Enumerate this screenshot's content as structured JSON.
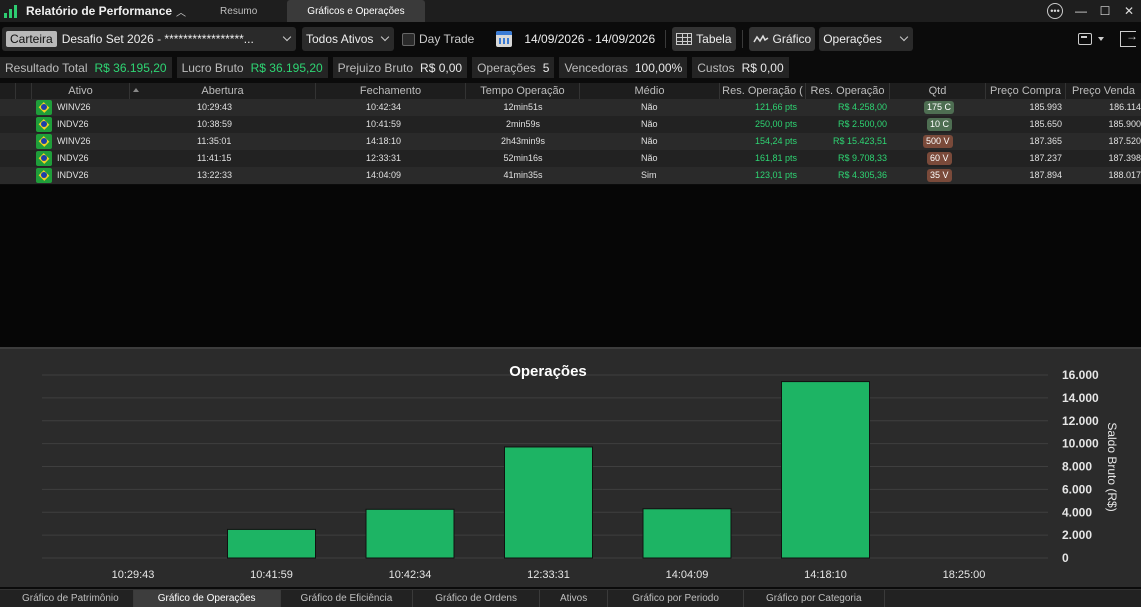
{
  "app": {
    "title": "Relatório de Performance"
  },
  "top_tabs": [
    {
      "label": "Resumo",
      "active": false
    },
    {
      "label": "Gráficos e Operações",
      "active": true
    }
  ],
  "toolbar": {
    "portfolio_badge": "Carteira",
    "portfolio_name": "Desafio Set 2026 - *****************...",
    "assets_filter": "Todos Ativos",
    "daytrade_label": "Day Trade",
    "daytrade_checked": false,
    "date_range": "14/09/2026 - 14/09/2026",
    "table_button": "Tabela",
    "chart_button": "Gráfico",
    "view_select": "Operações"
  },
  "summary": [
    {
      "label": "Resultado Total",
      "value": "R$ 36.195,20",
      "green": true
    },
    {
      "label": "Lucro Bruto",
      "value": "R$ 36.195,20",
      "green": true
    },
    {
      "label": "Prejuizo Bruto",
      "value": "R$ 0,00",
      "green": false
    },
    {
      "label": "Operações",
      "value": "5",
      "green": false
    },
    {
      "label": "Vencedoras",
      "value": "100,00%",
      "green": false
    },
    {
      "label": "Custos",
      "value": "R$ 0,00",
      "green": false
    }
  ],
  "table": {
    "columns": [
      "Ativo",
      "Abertura",
      "Fechamento",
      "Tempo Operação",
      "Médio",
      "Res. Operação (",
      "Res. Operação",
      "Qtd",
      "Preço Compra",
      "Preço Venda"
    ],
    "rows": [
      {
        "ativo": "WINV26",
        "abertura": "10:29:43",
        "fechamento": "10:42:34",
        "tempo": "12min51s",
        "medio": "Não",
        "res_pts": "121,66 pts",
        "res_rs": "R$ 4.258,00",
        "qtd": "175 C",
        "qtd_side": "c",
        "compra": "185.993",
        "venda": "186.114"
      },
      {
        "ativo": "INDV26",
        "abertura": "10:38:59",
        "fechamento": "10:41:59",
        "tempo": "2min59s",
        "medio": "Não",
        "res_pts": "250,00 pts",
        "res_rs": "R$ 2.500,00",
        "qtd": "10 C",
        "qtd_side": "c",
        "compra": "185.650",
        "venda": "185.900"
      },
      {
        "ativo": "WINV26",
        "abertura": "11:35:01",
        "fechamento": "14:18:10",
        "tempo": "2h43min9s",
        "medio": "Não",
        "res_pts": "154,24 pts",
        "res_rs": "R$ 15.423,51",
        "qtd": "500 V",
        "qtd_side": "v",
        "compra": "187.365",
        "venda": "187.520"
      },
      {
        "ativo": "INDV26",
        "abertura": "11:41:15",
        "fechamento": "12:33:31",
        "tempo": "52min16s",
        "medio": "Não",
        "res_pts": "161,81 pts",
        "res_rs": "R$ 9.708,33",
        "qtd": "60 V",
        "qtd_side": "v",
        "compra": "187.237",
        "venda": "187.398"
      },
      {
        "ativo": "INDV26",
        "abertura": "13:22:33",
        "fechamento": "14:04:09",
        "tempo": "41min35s",
        "medio": "Sim",
        "res_pts": "123,01 pts",
        "res_rs": "R$ 4.305,36",
        "qtd": "35 V",
        "qtd_side": "v",
        "compra": "187.894",
        "venda": "188.017"
      }
    ]
  },
  "chart_data": {
    "type": "bar",
    "title": "Operações",
    "ylabel": "Saldo Bruto (R$)",
    "xlabel": "",
    "categories": [
      "10:29:43",
      "10:41:59",
      "10:42:34",
      "12:33:31",
      "14:04:09",
      "14:18:10",
      "18:25:00"
    ],
    "values": [
      0,
      2500.0,
      4258.0,
      9708.33,
      4305.36,
      15423.51,
      0
    ],
    "ylim": [
      0,
      16000
    ],
    "yticks": [
      0,
      2000,
      4000,
      6000,
      8000,
      10000,
      12000,
      14000,
      16000
    ],
    "ytick_labels": [
      "0",
      "2.000",
      "4.000",
      "6.000",
      "8.000",
      "10.000",
      "12.000",
      "14.000",
      "16.000"
    ],
    "grid": true,
    "y_axis_side": "right",
    "bar_color": "#1db464"
  },
  "bottom_tabs": [
    {
      "label": "Gráfico de Patrimônio",
      "active": false
    },
    {
      "label": "Gráfico de Operações",
      "active": true
    },
    {
      "label": "Gráfico de Eficiência",
      "active": false
    },
    {
      "label": "Gráfico de Ordens",
      "active": false
    },
    {
      "label": "Ativos",
      "active": false
    },
    {
      "label": "Gráfico por Periodo",
      "active": false
    },
    {
      "label": "Gráfico por Categoria",
      "active": false
    }
  ]
}
